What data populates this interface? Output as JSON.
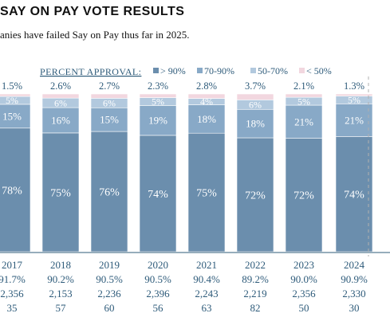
{
  "title": "SAY ON PAY VOTE RESULTS",
  "subtitle": "anies have failed Say on Pay thus far in 2025.",
  "legend": {
    "heading": "PERCENT APPROVAL:",
    "items": [
      {
        "label": "> 90%",
        "color": "#6b8ead"
      },
      {
        "label": "70-90%",
        "color": "#88a9c7"
      },
      {
        "label": "50-70%",
        "color": "#b2c9de"
      },
      {
        "label": "< 50%",
        "color": "#f2d7df"
      }
    ]
  },
  "chart_data": {
    "type": "bar",
    "stacked": true,
    "ylim": [
      0,
      100
    ],
    "categories": [
      "2017",
      "2018",
      "2019",
      "2020",
      "2021",
      "2022",
      "2023",
      "2024"
    ],
    "series": [
      {
        "name": "> 90%",
        "labels": [
          "78%",
          "75%",
          "76%",
          "74%",
          "75%",
          "72%",
          "72%",
          "74%"
        ],
        "values": [
          78,
          75,
          76,
          74,
          75,
          72,
          72,
          74
        ]
      },
      {
        "name": "70-90%",
        "labels": [
          "15%",
          "16%",
          "15%",
          "19%",
          "18%",
          "18%",
          "21%",
          "21%"
        ],
        "values": [
          15,
          16,
          15,
          19,
          18,
          18,
          21,
          21
        ]
      },
      {
        "name": "50-70%",
        "labels": [
          "5%",
          "6%",
          "6%",
          "5%",
          "4%",
          "6%",
          "5%",
          "5%"
        ],
        "values": [
          5,
          6,
          6,
          5,
          4,
          6,
          5,
          5
        ]
      },
      {
        "name": "< 50%",
        "labels": [
          "1.5%",
          "2.6%",
          "2.7%",
          "2.3%",
          "2.8%",
          "3.7%",
          "2.1%",
          "1.3%"
        ],
        "values": [
          1.5,
          2.6,
          2.7,
          2.3,
          2.8,
          3.7,
          2.1,
          1.3
        ]
      }
    ],
    "avg_approval": [
      "91.7%",
      "90.2%",
      "90.5%",
      "90.5%",
      "90.4%",
      "89.2%",
      "90.0%",
      "90.9%"
    ],
    "num_votes": [
      "2,356",
      "2,153",
      "2,236",
      "2,396",
      "2,243",
      "2,219",
      "2,356",
      "2,330"
    ],
    "num_failed": [
      "35",
      "57",
      "60",
      "56",
      "63",
      "82",
      "50",
      "30"
    ]
  }
}
